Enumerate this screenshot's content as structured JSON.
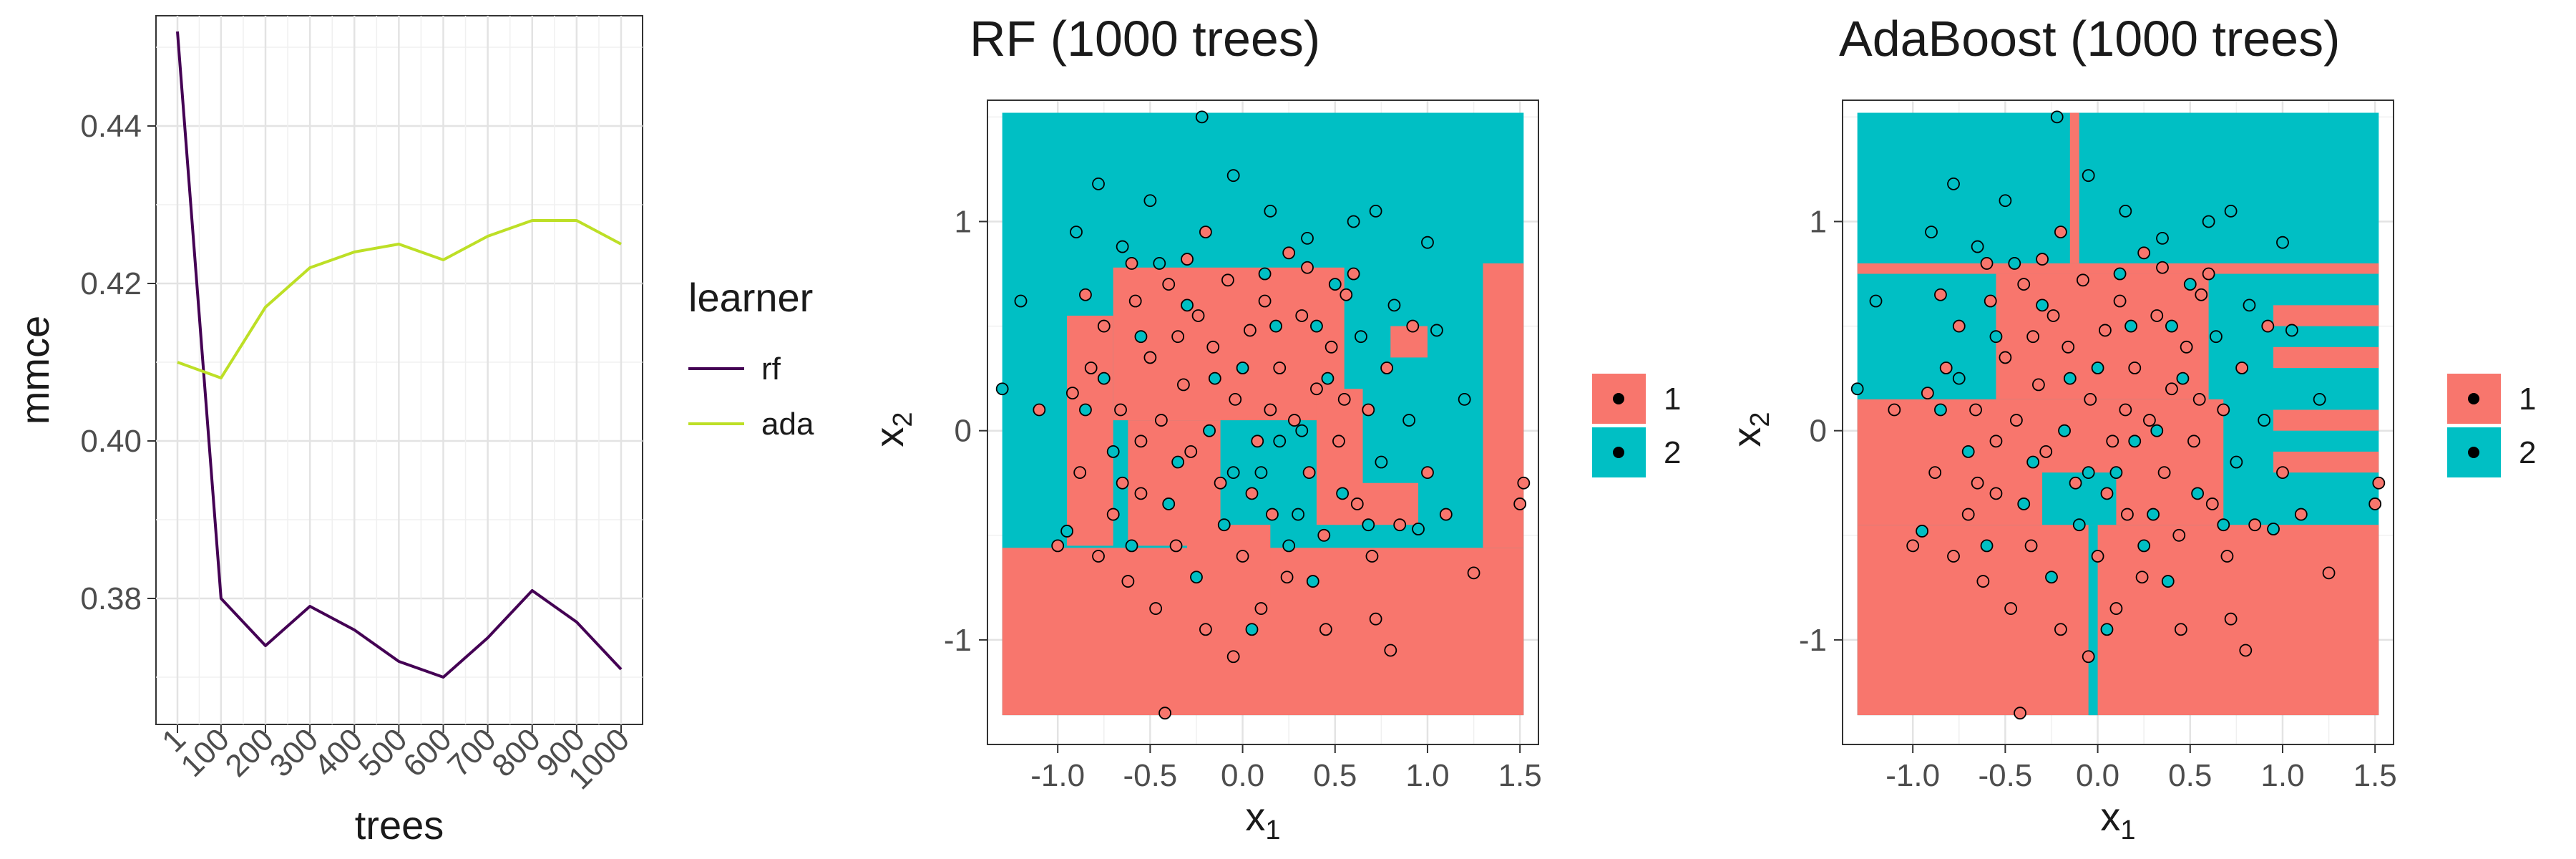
{
  "chart_data": [
    {
      "type": "line",
      "title": "",
      "xlabel": "trees",
      "ylabel": "mmce",
      "x_tick_labels": [
        "1",
        "100",
        "200",
        "300",
        "400",
        "500",
        "600",
        "700",
        "800",
        "900",
        "1000"
      ],
      "y_tick_labels": [
        "0.38",
        "0.40",
        "0.42",
        "0.44"
      ],
      "ylim": [
        0.364,
        0.454
      ],
      "legend": {
        "title": "learner",
        "placement": "right"
      },
      "series": [
        {
          "name": "rf",
          "color": "#440154",
          "x": [
            1,
            50,
            100,
            150,
            200,
            250,
            300,
            350,
            400,
            450,
            500
          ],
          "y": [
            0.452,
            0.38,
            0.374,
            0.379,
            0.376,
            0.372,
            0.37,
            0.375,
            0.381,
            0.377,
            0.371
          ]
        },
        {
          "name": "ada",
          "color": "#bddf26",
          "x": [
            1,
            50,
            100,
            150,
            200,
            250,
            300,
            350,
            400,
            450,
            500
          ],
          "y": [
            0.41,
            0.408,
            0.417,
            0.422,
            0.424,
            0.425,
            0.423,
            0.426,
            0.428,
            0.428,
            0.425
          ]
        }
      ]
    },
    {
      "type": "heatmap",
      "title": "RF (1000 trees)",
      "xlabel": "x",
      "xlabel_sub": "1",
      "ylabel": "x",
      "ylabel_sub": "2",
      "x_tick_labels": [
        "-1.0",
        "-0.5",
        "0.0",
        "0.5",
        "1.0",
        "1.5"
      ],
      "y_tick_labels": [
        "-1",
        "0",
        "1"
      ],
      "xlim": [
        -1.38,
        1.6
      ],
      "ylim": [
        -1.5,
        1.58
      ],
      "legend": {
        "placement": "right",
        "labels": [
          "1",
          "2"
        ]
      },
      "class_colors": {
        "1": "#f8766d",
        "2": "#00bfc4"
      },
      "region_extent": {
        "x": [
          -1.3,
          1.52
        ],
        "y": [
          -1.36,
          1.52
        ]
      },
      "regions_class1": [
        {
          "x": [
            -1.3,
            1.52
          ],
          "y": [
            -1.36,
            -0.56
          ]
        },
        {
          "x": [
            1.3,
            1.52
          ],
          "y": [
            -0.56,
            0.8
          ]
        },
        {
          "x": [
            -0.95,
            -0.7
          ],
          "y": [
            -0.55,
            0.55
          ]
        },
        {
          "x": [
            -0.7,
            0.55
          ],
          "y": [
            0.05,
            0.78
          ]
        },
        {
          "x": [
            -0.62,
            -0.12
          ],
          "y": [
            -0.55,
            0.05
          ]
        },
        {
          "x": [
            -0.3,
            0.15
          ],
          "y": [
            -0.8,
            -0.45
          ]
        },
        {
          "x": [
            0.4,
            0.65
          ],
          "y": [
            -0.45,
            0.2
          ]
        },
        {
          "x": [
            0.5,
            0.95
          ],
          "y": [
            -0.45,
            -0.25
          ]
        },
        {
          "x": [
            0.8,
            1.0
          ],
          "y": [
            0.35,
            0.5
          ]
        }
      ]
    },
    {
      "type": "heatmap",
      "title": "AdaBoost (1000 trees)",
      "xlabel": "x",
      "xlabel_sub": "1",
      "ylabel": "x",
      "ylabel_sub": "2",
      "x_tick_labels": [
        "-1.0",
        "-0.5",
        "0.0",
        "0.5",
        "1.0",
        "1.5"
      ],
      "y_tick_labels": [
        "-1",
        "0",
        "1"
      ],
      "xlim": [
        -1.38,
        1.6
      ],
      "ylim": [
        -1.5,
        1.58
      ],
      "legend": {
        "placement": "right",
        "labels": [
          "1",
          "2"
        ]
      },
      "class_colors": {
        "1": "#f8766d",
        "2": "#00bfc4"
      },
      "region_extent": {
        "x": [
          -1.3,
          1.52
        ],
        "y": [
          -1.36,
          1.52
        ]
      },
      "regions_class1": [
        {
          "x": [
            -1.3,
            1.52
          ],
          "y": [
            -1.36,
            -0.45
          ]
        },
        {
          "x": [
            -1.3,
            0.68
          ],
          "y": [
            -0.45,
            0.15
          ]
        },
        {
          "x": [
            -1.3,
            1.52
          ],
          "y": [
            0.75,
            0.8
          ]
        },
        {
          "x": [
            -0.55,
            0.6
          ],
          "y": [
            0.15,
            0.75
          ]
        },
        {
          "x": [
            -0.15,
            -0.1
          ],
          "y": [
            0.8,
            1.52
          ]
        },
        {
          "x": [
            0.95,
            1.52
          ],
          "y": [
            0.5,
            0.6
          ]
        },
        {
          "x": [
            0.95,
            1.52
          ],
          "y": [
            0.3,
            0.4
          ]
        },
        {
          "x": [
            0.95,
            1.52
          ],
          "y": [
            0.0,
            0.1
          ]
        },
        {
          "x": [
            0.95,
            1.52
          ],
          "y": [
            -0.2,
            -0.1
          ]
        }
      ],
      "regions_class2": [
        {
          "x": [
            -0.3,
            0.1
          ],
          "y": [
            -0.45,
            -0.2
          ]
        },
        {
          "x": [
            -0.05,
            0.0
          ],
          "y": [
            -1.36,
            -0.45
          ]
        }
      ]
    }
  ],
  "scatter_points": {
    "class1": [
      [
        -0.92,
        0.18
      ],
      [
        -0.88,
        -0.2
      ],
      [
        -0.82,
        0.3
      ],
      [
        -0.78,
        -0.6
      ],
      [
        -0.75,
        0.5
      ],
      [
        -0.7,
        -0.4
      ],
      [
        -0.66,
        0.1
      ],
      [
        -0.62,
        -0.72
      ],
      [
        -0.58,
        0.62
      ],
      [
        -0.55,
        -0.3
      ],
      [
        -0.5,
        0.35
      ],
      [
        -0.47,
        -0.85
      ],
      [
        -0.44,
        0.05
      ],
      [
        -0.4,
        0.7
      ],
      [
        -0.36,
        -0.55
      ],
      [
        -0.32,
        0.22
      ],
      [
        -0.28,
        -0.1
      ],
      [
        -0.24,
        0.55
      ],
      [
        -0.2,
        -0.95
      ],
      [
        -0.16,
        0.4
      ],
      [
        -0.12,
        -0.25
      ],
      [
        -0.08,
        0.72
      ],
      [
        -0.04,
        0.15
      ],
      [
        0.0,
        -0.6
      ],
      [
        0.04,
        0.48
      ],
      [
        0.08,
        -0.05
      ],
      [
        0.12,
        0.62
      ],
      [
        0.16,
        -0.4
      ],
      [
        0.2,
        0.3
      ],
      [
        0.24,
        -0.7
      ],
      [
        0.28,
        0.05
      ],
      [
        0.32,
        0.55
      ],
      [
        0.36,
        -0.2
      ],
      [
        0.4,
        0.2
      ],
      [
        0.44,
        -0.5
      ],
      [
        0.48,
        0.4
      ],
      [
        0.52,
        -0.05
      ],
      [
        0.56,
        0.65
      ],
      [
        0.62,
        -0.35
      ],
      [
        0.68,
        0.1
      ],
      [
        0.72,
        -0.9
      ],
      [
        0.78,
        0.3
      ],
      [
        0.85,
        -0.45
      ],
      [
        0.92,
        0.5
      ],
      [
        1.0,
        -0.2
      ],
      [
        1.1,
        -0.4
      ],
      [
        1.25,
        -0.68
      ],
      [
        1.5,
        -0.35
      ],
      [
        1.52,
        -0.25
      ],
      [
        -0.42,
        -1.35
      ],
      [
        -0.05,
        -1.08
      ],
      [
        0.8,
        -1.05
      ],
      [
        -0.6,
        0.8
      ],
      [
        -0.3,
        0.82
      ],
      [
        0.35,
        0.78
      ],
      [
        -1.1,
        0.1
      ],
      [
        -1.0,
        -0.55
      ],
      [
        0.6,
        0.75
      ],
      [
        -0.2,
        0.95
      ],
      [
        0.1,
        -0.85
      ],
      [
        0.45,
        -0.95
      ],
      [
        -0.85,
        0.65
      ],
      [
        0.7,
        -0.6
      ],
      [
        0.25,
        0.85
      ],
      [
        -0.55,
        -0.05
      ],
      [
        0.15,
        0.1
      ],
      [
        -0.65,
        -0.25
      ],
      [
        0.55,
        0.15
      ],
      [
        -0.35,
        0.45
      ],
      [
        0.05,
        -0.3
      ]
    ],
    "class2": [
      [
        -1.3,
        0.2
      ],
      [
        -1.2,
        0.62
      ],
      [
        -0.9,
        0.95
      ],
      [
        -0.78,
        1.18
      ],
      [
        -0.65,
        0.88
      ],
      [
        -0.5,
        1.1
      ],
      [
        -0.22,
        1.5
      ],
      [
        -0.05,
        1.22
      ],
      [
        0.15,
        1.05
      ],
      [
        0.35,
        0.92
      ],
      [
        0.6,
        1.0
      ],
      [
        0.72,
        1.05
      ],
      [
        1.0,
        0.9
      ],
      [
        1.2,
        0.15
      ],
      [
        -0.85,
        0.1
      ],
      [
        -0.7,
        -0.1
      ],
      [
        -0.55,
        0.45
      ],
      [
        -0.4,
        -0.35
      ],
      [
        -0.3,
        0.6
      ],
      [
        -0.18,
        0.0
      ],
      [
        -0.1,
        -0.45
      ],
      [
        0.0,
        0.3
      ],
      [
        0.1,
        -0.2
      ],
      [
        0.18,
        0.5
      ],
      [
        0.25,
        -0.55
      ],
      [
        0.32,
        0.0
      ],
      [
        0.38,
        -0.72
      ],
      [
        0.46,
        0.25
      ],
      [
        0.54,
        -0.3
      ],
      [
        0.64,
        0.45
      ],
      [
        0.75,
        -0.15
      ],
      [
        0.82,
        0.6
      ],
      [
        0.95,
        -0.47
      ],
      [
        1.05,
        0.48
      ],
      [
        -0.95,
        -0.48
      ],
      [
        -0.75,
        0.25
      ],
      [
        -0.45,
        0.8
      ],
      [
        0.05,
        -0.95
      ],
      [
        0.3,
        -0.4
      ],
      [
        -0.25,
        -0.7
      ],
      [
        0.9,
        0.05
      ],
      [
        0.5,
        0.7
      ],
      [
        -0.15,
        0.25
      ],
      [
        0.2,
        -0.05
      ],
      [
        -0.6,
        -0.55
      ],
      [
        0.68,
        -0.45
      ],
      [
        0.4,
        0.5
      ],
      [
        -0.35,
        -0.15
      ],
      [
        0.12,
        0.75
      ],
      [
        -0.05,
        -0.2
      ]
    ]
  }
}
